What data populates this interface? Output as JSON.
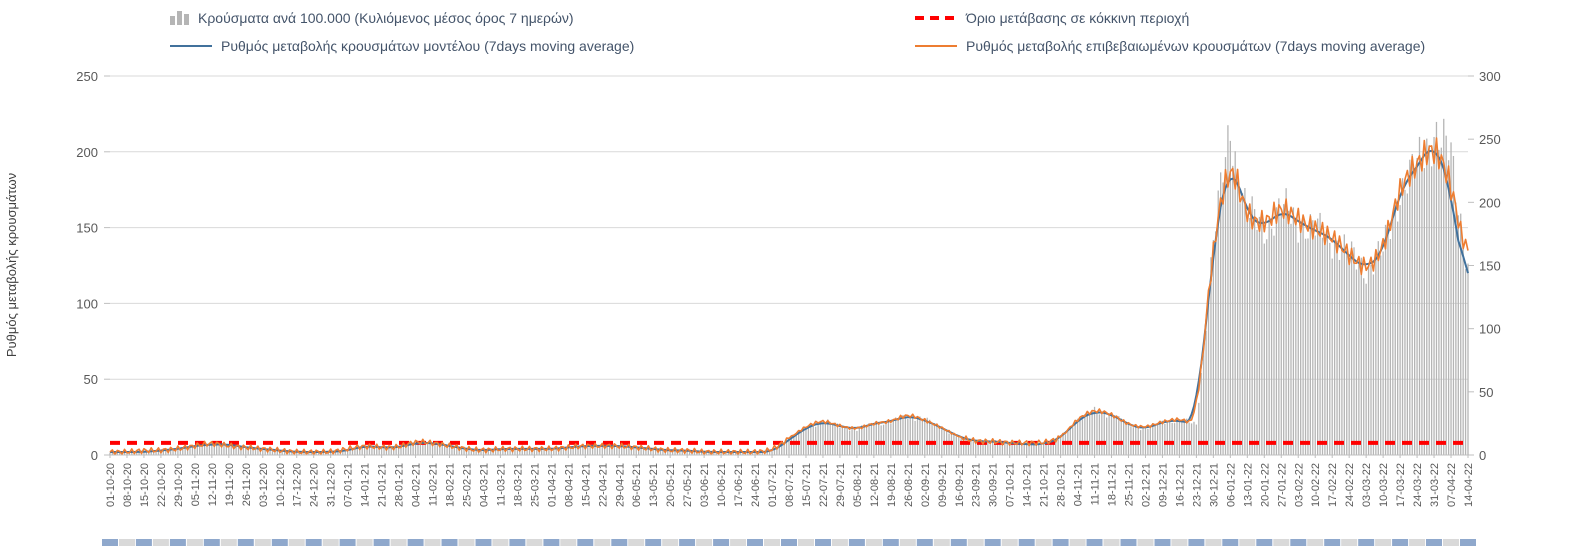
{
  "legend": {
    "bars_label": "Κρούσματα ανά 100.000 (Κυλιόμενος μέσος όρος 7 ημερών)",
    "threshold_label": "Όριο μετάβασης σε κόκκινη περιοχή",
    "model_label": "Ρυθμός μεταβολής κρουσμάτων μοντέλου (7days moving average)",
    "confirmed_label": "Ρυθμός μεταβολής επιβεβαιωμένων κρουσμάτων (7days moving average)"
  },
  "colors": {
    "bars": "#b5b5b5",
    "model_line": "#41719c",
    "confirmed_line": "#ed7d31",
    "threshold": "#ff0000",
    "grid": "#d9d9d9",
    "axis_line": "#bfbfbf",
    "axis_text": "#595959",
    "legend_text": "#44546a",
    "strip_blue": "#8fa8cc",
    "strip_gray": "#d9d9d9"
  },
  "chart_data": {
    "type": "bar",
    "title": "",
    "legend_position": "top",
    "grid": true,
    "x": [
      "01-10-20",
      "08-10-20",
      "15-10-20",
      "22-10-20",
      "29-10-20",
      "05-11-20",
      "12-11-20",
      "19-11-20",
      "26-11-20",
      "03-12-20",
      "10-12-20",
      "17-12-20",
      "24-12-20",
      "31-12-20",
      "07-01-21",
      "14-01-21",
      "21-01-21",
      "28-01-21",
      "04-02-21",
      "11-02-21",
      "18-02-21",
      "25-02-21",
      "04-03-21",
      "11-03-21",
      "18-03-21",
      "25-03-21",
      "01-04-21",
      "08-04-21",
      "15-04-21",
      "22-04-21",
      "29-04-21",
      "06-05-21",
      "13-05-21",
      "20-05-21",
      "27-05-21",
      "03-06-21",
      "10-06-21",
      "17-06-21",
      "24-06-21",
      "01-07-21",
      "08-07-21",
      "15-07-21",
      "22-07-21",
      "29-07-21",
      "05-08-21",
      "12-08-21",
      "19-08-21",
      "26-08-21",
      "02-09-21",
      "09-09-21",
      "16-09-21",
      "23-09-21",
      "30-09-21",
      "07-10-21",
      "14-10-21",
      "21-10-21",
      "28-10-21",
      "04-11-21",
      "11-11-21",
      "18-11-21",
      "25-11-21",
      "02-12-21",
      "09-12-21",
      "16-12-21",
      "23-12-21",
      "30-12-21",
      "06-01-22",
      "13-01-22",
      "20-01-22",
      "27-01-22",
      "03-02-22",
      "10-02-22",
      "17-02-22",
      "24-02-22",
      "03-03-22",
      "10-03-22",
      "17-03-22",
      "24-03-22",
      "31-03-22",
      "07-04-22",
      "14-04-22"
    ],
    "y_left": {
      "label": "Ρυθμός μεταβολής κρουσμάτων",
      "min": 0,
      "max": 250,
      "ticks": [
        0,
        50,
        100,
        150,
        200,
        250
      ]
    },
    "y_right": {
      "min": 0,
      "max": 300,
      "ticks": [
        0,
        50,
        100,
        150,
        200,
        250,
        300
      ]
    },
    "series": [
      {
        "name": "Κρούσματα ανά 100.000 (Κυλιόμενος μέσος όρος 7 ημερών)",
        "type": "bar",
        "axis": "right",
        "values": [
          2,
          2,
          3,
          4,
          5,
          7,
          9,
          8,
          6,
          5,
          4,
          3,
          3,
          3,
          4,
          7,
          6,
          6,
          10,
          10,
          7,
          5,
          4,
          5,
          5,
          5,
          5,
          6,
          7,
          7,
          7,
          6,
          5,
          4,
          4,
          3,
          3,
          2,
          2,
          3,
          12,
          22,
          27,
          23,
          20,
          25,
          26,
          31,
          28,
          22,
          14,
          11,
          11,
          10,
          9,
          9,
          13,
          28,
          35,
          32,
          24,
          21,
          26,
          28,
          24,
          170,
          258,
          190,
          180,
          195,
          185,
          178,
          172,
          158,
          148,
          160,
          210,
          228,
          258,
          235,
          150
        ]
      },
      {
        "name": "Ρυθμός μεταβολής κρουσμάτων μοντέλου (7days moving average)",
        "type": "line",
        "axis": "left",
        "values": [
          2,
          2,
          2,
          3,
          4,
          6,
          7,
          7,
          5,
          4,
          3,
          2,
          2,
          2,
          3,
          6,
          5,
          5,
          8,
          8,
          6,
          4,
          3,
          4,
          4,
          4,
          4,
          5,
          6,
          6,
          6,
          5,
          4,
          3,
          3,
          2,
          2,
          2,
          2,
          2,
          10,
          18,
          22,
          19,
          17,
          21,
          22,
          26,
          23,
          18,
          12,
          9,
          9,
          8,
          7,
          7,
          11,
          23,
          29,
          27,
          20,
          17,
          22,
          23,
          20,
          140,
          197,
          158,
          150,
          162,
          154,
          148,
          143,
          131,
          123,
          133,
          175,
          190,
          208,
          175,
          98
        ]
      },
      {
        "name": "Ρυθμός μεταβολής επιβεβαιωμένων κρουσμάτων (7days moving average)",
        "type": "line",
        "axis": "left",
        "values": [
          2,
          2,
          3,
          3,
          4,
          6,
          8,
          6,
          5,
          4,
          3,
          2,
          2,
          2,
          4,
          6,
          5,
          5,
          9,
          8,
          6,
          4,
          3,
          4,
          4,
          4,
          4,
          5,
          6,
          6,
          6,
          5,
          4,
          3,
          3,
          2,
          2,
          2,
          2,
          3,
          11,
          19,
          23,
          19,
          17,
          21,
          22,
          27,
          23,
          18,
          12,
          9,
          9,
          8,
          8,
          8,
          11,
          24,
          30,
          27,
          20,
          18,
          22,
          24,
          20,
          142,
          197,
          156,
          152,
          164,
          155,
          149,
          144,
          132,
          122,
          135,
          177,
          192,
          205,
          180,
          122
        ]
      },
      {
        "name": "Όριο μετάβασης σε κόκκινη περιοχή",
        "type": "threshold",
        "axis": "left",
        "value": 8
      }
    ]
  }
}
